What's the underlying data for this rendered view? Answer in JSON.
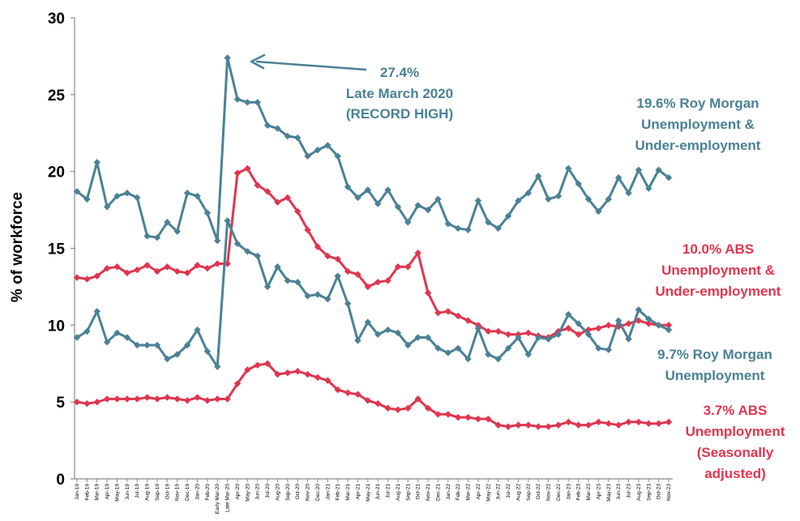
{
  "chart_data": {
    "type": "line",
    "title": "",
    "xlabel": "",
    "ylabel": "% of workforce",
    "ylim": [
      0,
      30
    ],
    "yticks": [
      0,
      5,
      10,
      15,
      20,
      25,
      30
    ],
    "grid": false,
    "categories": [
      "Jan-19",
      "Feb-19",
      "Mar-19",
      "Apr-19",
      "May-19",
      "Jun-19",
      "Jul-19",
      "Aug-19",
      "Sep-19",
      "Oct-19",
      "Nov-19",
      "Dec-19",
      "Jan-20",
      "Feb-20",
      "Early Mar-20",
      "Late Mar-20",
      "Apr-20",
      "May-20",
      "Jun-20",
      "Jul-20",
      "Aug-20",
      "Sep-20",
      "Oct-20",
      "Nov-20",
      "Dec-20",
      "Jan-21",
      "Feb-21",
      "Mar-21",
      "Apr-21",
      "May-21",
      "Jun-21",
      "Jul-21",
      "Aug-21",
      "Sep-21",
      "Oct-21",
      "Nov-21",
      "Dec-21",
      "Jan-22",
      "Feb-22",
      "Mar-22",
      "Apr-22",
      "May-22",
      "Jun-22",
      "Jul-22",
      "Aug-22",
      "Sep-22",
      "Oct-22",
      "Nov-22",
      "Dec-22",
      "Jan-23",
      "Feb-23",
      "Mar-23",
      "Apr-23",
      "May-23",
      "Jun-23",
      "Jul-23",
      "Aug-23",
      "Sep-23",
      "Oct-23",
      "Nov-23"
    ],
    "series": [
      {
        "name": "Roy Morgan Unemployment & Under-employment",
        "color": "#4a8196",
        "values": [
          18.7,
          18.2,
          20.6,
          17.7,
          18.4,
          18.6,
          18.3,
          15.8,
          15.7,
          16.7,
          16.1,
          18.6,
          18.4,
          17.3,
          15.5,
          27.4,
          24.7,
          24.5,
          24.5,
          23.0,
          22.8,
          22.3,
          22.2,
          21.0,
          21.4,
          21.7,
          21.0,
          19.0,
          18.3,
          18.8,
          17.9,
          18.8,
          17.7,
          16.7,
          17.8,
          17.5,
          18.2,
          16.6,
          16.3,
          16.2,
          18.1,
          16.7,
          16.3,
          17.1,
          18.1,
          18.6,
          19.7,
          18.2,
          18.4,
          20.2,
          19.2,
          18.2,
          17.4,
          18.2,
          19.6,
          18.6,
          20.1,
          18.9,
          20.1,
          19.6
        ]
      },
      {
        "name": "ABS Unemployment & Under-employment",
        "color": "#e0354f",
        "values": [
          13.1,
          13.0,
          13.2,
          13.7,
          13.8,
          13.4,
          13.6,
          13.9,
          13.5,
          13.8,
          13.5,
          13.4,
          13.9,
          13.7,
          14.0,
          14.0,
          19.9,
          20.2,
          19.1,
          18.7,
          18.0,
          18.3,
          17.4,
          16.2,
          15.1,
          14.5,
          14.3,
          13.5,
          13.3,
          12.5,
          12.8,
          12.9,
          13.8,
          13.8,
          14.7,
          12.1,
          10.8,
          10.9,
          10.6,
          10.3,
          10.0,
          9.6,
          9.6,
          9.4,
          9.4,
          9.5,
          9.3,
          9.2,
          9.6,
          9.8,
          9.4,
          9.7,
          9.8,
          10.0,
          9.9,
          10.1,
          10.3,
          10.1,
          10.0,
          10.0
        ]
      },
      {
        "name": "Roy Morgan Unemployment",
        "color": "#4a8196",
        "values": [
          9.2,
          9.6,
          10.9,
          8.9,
          9.5,
          9.2,
          8.7,
          8.7,
          8.7,
          7.8,
          8.1,
          8.7,
          9.7,
          8.3,
          7.3,
          16.8,
          15.3,
          14.8,
          14.5,
          12.5,
          13.8,
          12.9,
          12.8,
          11.9,
          12.0,
          11.7,
          13.2,
          11.4,
          9.0,
          10.2,
          9.4,
          9.7,
          9.5,
          8.7,
          9.2,
          9.2,
          8.5,
          8.2,
          8.5,
          7.8,
          9.8,
          8.1,
          7.8,
          8.5,
          9.2,
          8.1,
          9.2,
          9.1,
          9.4,
          10.7,
          10.1,
          9.4,
          8.5,
          8.4,
          10.3,
          9.1,
          11.0,
          10.4,
          10.0,
          9.7
        ]
      },
      {
        "name": "ABS Unemployment (Seasonally adjusted)",
        "color": "#e0354f",
        "values": [
          5.0,
          4.9,
          5.0,
          5.2,
          5.2,
          5.2,
          5.2,
          5.3,
          5.2,
          5.3,
          5.2,
          5.1,
          5.3,
          5.1,
          5.2,
          5.2,
          6.2,
          7.1,
          7.4,
          7.5,
          6.8,
          6.9,
          7.0,
          6.8,
          6.6,
          6.4,
          5.8,
          5.6,
          5.5,
          5.1,
          4.9,
          4.6,
          4.5,
          4.6,
          5.2,
          4.6,
          4.2,
          4.2,
          4.0,
          4.0,
          3.9,
          3.9,
          3.5,
          3.4,
          3.5,
          3.5,
          3.4,
          3.4,
          3.5,
          3.7,
          3.5,
          3.5,
          3.7,
          3.6,
          3.5,
          3.7,
          3.7,
          3.6,
          3.6,
          3.7
        ]
      }
    ],
    "annotations": {
      "peak_value": "27.4%",
      "peak_line1": "Late March 2020",
      "peak_line2": "(RECORD HIGH)",
      "rm_total_line1": "19.6% Roy Morgan",
      "rm_total_line2": "Unemployment &",
      "rm_total_line3": "Under-employment",
      "abs_total_line1": "10.0% ABS",
      "abs_total_line2": "Unemployment &",
      "abs_total_line3": "Under-employment",
      "rm_unemp_line1": "9.7% Roy Morgan",
      "rm_unemp_line2": "Unemployment",
      "abs_unemp_line1": "3.7% ABS",
      "abs_unemp_line2": "Unemployment",
      "abs_unemp_line3": "(Seasonally",
      "abs_unemp_line4": "adjusted)"
    }
  }
}
